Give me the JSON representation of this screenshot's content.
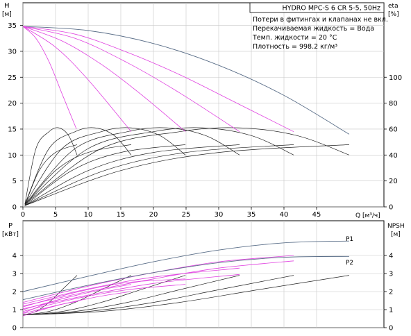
{
  "header": {
    "title": "HYDRO MPC-S 6 CR 5-5, 50Hz",
    "notes": [
      "Потери в фитингах и клапанах не вкл.",
      "Перекачиваемая жидкость = Вода",
      "Темп. жидкости = 20 °C",
      "Плотность = 998.2 кг/м³"
    ]
  },
  "colors": {
    "system_curve": "#5a6e88",
    "partial_speed_curve": "#e040e0",
    "pump_curve": "#222222",
    "axis": "#000000"
  },
  "chart_data": [
    {
      "type": "line",
      "xlabel": "Q [м³/ч]",
      "ylabel_left": "H",
      "ylabel_left_unit": "[м]",
      "ylabel_right": "eta",
      "ylabel_right_unit": "[%]",
      "xlim": [
        0,
        50
      ],
      "ylim": [
        0,
        40
      ],
      "y2lim": [
        0,
        160
      ],
      "x_ticks": [
        0,
        5,
        10,
        15,
        20,
        25,
        30,
        35,
        40,
        45
      ],
      "y_ticks": [
        0,
        5,
        10,
        15,
        20,
        25,
        30,
        35
      ],
      "y2_ticks": [
        0,
        20,
        40,
        60,
        80,
        100
      ],
      "grid": true,
      "head_curves": [
        {
          "color": "system",
          "x": [
            0,
            10,
            20,
            30,
            40,
            50
          ],
          "y": [
            34.8,
            34.0,
            31.5,
            27.3,
            21.5,
            14.0
          ]
        },
        {
          "color": "partial",
          "x": [
            0,
            8,
            16,
            24,
            32,
            41.5
          ],
          "y": [
            34.8,
            33.3,
            29.8,
            25.5,
            20.5,
            14.5
          ]
        },
        {
          "color": "partial",
          "x": [
            0,
            8,
            16,
            24,
            33.2
          ],
          "y": [
            34.8,
            32.5,
            27.8,
            22.0,
            14.5
          ]
        },
        {
          "color": "partial",
          "x": [
            0,
            6,
            12,
            18,
            24.9
          ],
          "y": [
            34.8,
            32.0,
            27.5,
            21.8,
            14.5
          ]
        },
        {
          "color": "partial",
          "x": [
            0,
            5,
            10,
            16.6
          ],
          "y": [
            34.8,
            30.8,
            24.5,
            14.5
          ]
        },
        {
          "color": "partial",
          "x": [
            0,
            2,
            4,
            6,
            8.2
          ],
          "y": [
            34.8,
            32.5,
            28.0,
            21.8,
            15.0
          ]
        }
      ],
      "eta_curves": [
        {
          "x": [
            0.3,
            2,
            4,
            5.5,
            7,
            8.3
          ],
          "y": [
            2,
            45,
            58,
            61,
            55,
            40
          ]
        },
        {
          "x": [
            0.3,
            4,
            8,
            11,
            14,
            16.6
          ],
          "y": [
            2,
            45,
            58,
            61,
            55,
            40
          ]
        },
        {
          "x": [
            0.3,
            6,
            12,
            16.5,
            21,
            24.9
          ],
          "y": [
            2,
            45,
            58,
            61,
            55,
            40
          ]
        },
        {
          "x": [
            0.3,
            8,
            16,
            22,
            28,
            33.2
          ],
          "y": [
            2,
            45,
            58,
            61,
            55,
            40
          ]
        },
        {
          "x": [
            0.3,
            10,
            20,
            27.5,
            35,
            41.5
          ],
          "y": [
            2,
            45,
            58,
            61,
            55,
            40
          ]
        },
        {
          "x": [
            0.3,
            12,
            24,
            33,
            42,
            50
          ],
          "y": [
            2,
            45,
            58,
            61,
            55,
            40
          ]
        },
        {
          "x": [
            0.3,
            2.5,
            5,
            8.3
          ],
          "y": [
            1,
            28,
            42,
            48
          ]
        },
        {
          "x": [
            0.3,
            5,
            10,
            16.6
          ],
          "y": [
            1,
            28,
            42,
            48
          ]
        },
        {
          "x": [
            0.3,
            7.5,
            15,
            24.9
          ],
          "y": [
            1,
            28,
            42,
            48
          ]
        },
        {
          "x": [
            0.3,
            10,
            20,
            33.2
          ],
          "y": [
            1,
            28,
            42,
            48
          ]
        },
        {
          "x": [
            0.3,
            12.5,
            25,
            41.5
          ],
          "y": [
            1,
            28,
            42,
            48
          ]
        },
        {
          "x": [
            0.3,
            15,
            30,
            50
          ],
          "y": [
            1,
            28,
            42,
            48
          ]
        }
      ]
    },
    {
      "type": "line",
      "ylabel_left": "P",
      "ylabel_left_unit": "[кВт]",
      "ylabel_right": "NPSH",
      "ylabel_right_unit": "[м]",
      "xlim": [
        0,
        50
      ],
      "ylim": [
        0,
        5.5
      ],
      "y2lim": [
        0,
        5.5
      ],
      "y_ticks": [
        0,
        1,
        2,
        3,
        4
      ],
      "y2_ticks": [
        0,
        1,
        2,
        3,
        4
      ],
      "grid": true,
      "series": [
        {
          "name": "P1",
          "color": "system",
          "x": [
            0,
            10,
            20,
            30,
            40,
            50
          ],
          "y": [
            2.0,
            2.85,
            3.65,
            4.3,
            4.7,
            4.8
          ]
        },
        {
          "name": "P2",
          "color": "system",
          "x": [
            0,
            10,
            20,
            30,
            40,
            50
          ],
          "y": [
            1.55,
            2.35,
            3.05,
            3.6,
            3.9,
            3.95
          ]
        }
      ],
      "partial_power_curves": [
        {
          "x": [
            0,
            10,
            20,
            30,
            41.5
          ],
          "y": [
            1.4,
            2.3,
            3.05,
            3.65,
            4.0
          ]
        },
        {
          "x": [
            0,
            10,
            20,
            33.2
          ],
          "y": [
            1.3,
            2.15,
            2.8,
            3.3
          ]
        },
        {
          "x": [
            0,
            8,
            16,
            24.9
          ],
          "y": [
            1.15,
            1.95,
            2.5,
            2.7
          ]
        },
        {
          "x": [
            0,
            6,
            12,
            16.6
          ],
          "y": [
            1.0,
            1.6,
            2.1,
            2.4
          ]
        },
        {
          "x": [
            0,
            3,
            6,
            8.3
          ],
          "y": [
            0.8,
            1.25,
            1.6,
            1.8
          ]
        },
        {
          "x": [
            0,
            10,
            20,
            30,
            41.5
          ],
          "y": [
            1.2,
            2.0,
            2.7,
            3.3,
            3.7
          ]
        },
        {
          "x": [
            0,
            10,
            20,
            33.2
          ],
          "y": [
            1.05,
            1.8,
            2.45,
            2.95
          ]
        },
        {
          "x": [
            0,
            8,
            16,
            24.9
          ],
          "y": [
            0.9,
            1.6,
            2.1,
            2.4
          ]
        },
        {
          "x": [
            0,
            6,
            12,
            16.6
          ],
          "y": [
            0.78,
            1.3,
            1.75,
            2.0
          ]
        },
        {
          "x": [
            0,
            3,
            6,
            8.3
          ],
          "y": [
            0.65,
            1.0,
            1.3,
            1.45
          ]
        }
      ],
      "npsh_curves": [
        {
          "x": [
            0,
            2,
            4,
            6,
            8.3
          ],
          "y": [
            0.7,
            0.9,
            1.4,
            2.1,
            2.9
          ]
        },
        {
          "x": [
            0,
            4,
            8,
            12,
            16.6
          ],
          "y": [
            0.7,
            0.9,
            1.4,
            2.1,
            2.9
          ]
        },
        {
          "x": [
            0,
            6,
            12,
            18,
            24.9
          ],
          "y": [
            0.7,
            0.9,
            1.4,
            2.1,
            2.9
          ]
        },
        {
          "x": [
            0,
            8,
            16,
            24,
            33.2
          ],
          "y": [
            0.7,
            0.9,
            1.4,
            2.1,
            2.9
          ]
        },
        {
          "x": [
            0,
            10,
            20,
            30,
            41.5
          ],
          "y": [
            0.7,
            0.9,
            1.4,
            2.1,
            2.9
          ]
        },
        {
          "x": [
            0,
            12,
            24,
            36,
            50
          ],
          "y": [
            0.7,
            0.9,
            1.4,
            2.1,
            2.9
          ]
        }
      ]
    }
  ]
}
